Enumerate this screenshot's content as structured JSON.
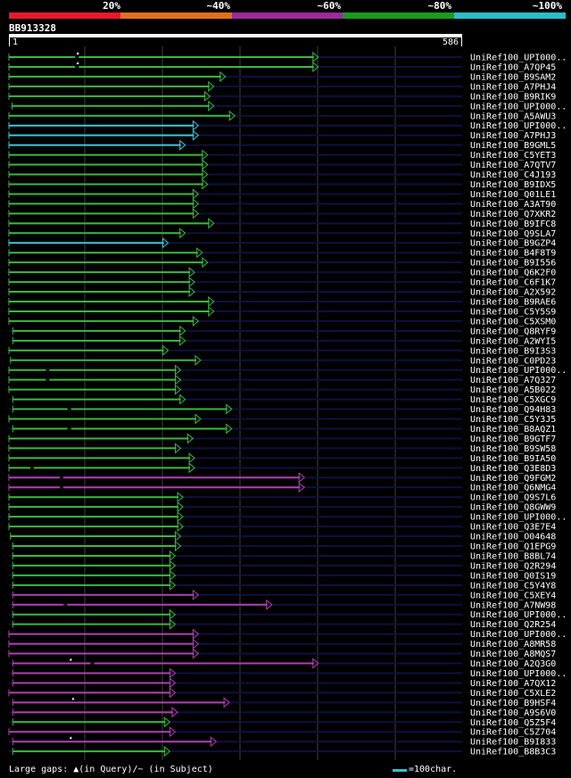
{
  "legend": {
    "labels": [
      "20%",
      "~40%",
      "~60%",
      "~80%",
      "~100%"
    ],
    "colors": [
      "#e8192c",
      "#e07020",
      "#9b2a9b",
      "#1d9a1d",
      "#2ebcc8"
    ]
  },
  "query": {
    "name": "BB913328",
    "start": "1",
    "end": "586",
    "length": 586
  },
  "colors": {
    "green": "#3cb83c",
    "cyan": "#3cc8d8",
    "magenta": "#b040b0",
    "guide": "#101040",
    "grid": "#404040"
  },
  "hits": [
    {
      "label": "UniRef100_UPI000..",
      "start": 1,
      "end": 400,
      "color": "green",
      "gap": 88,
      "marker": 89
    },
    {
      "label": "UniRef100_A7QP45",
      "start": 1,
      "end": 400,
      "color": "green",
      "gap": 88,
      "marker": 89
    },
    {
      "label": "UniRef100_B9SAM2",
      "start": 1,
      "end": 280,
      "color": "green"
    },
    {
      "label": "UniRef100_A7PHJ4",
      "start": 1,
      "end": 265,
      "color": "green"
    },
    {
      "label": "UniRef100_B9RIK9",
      "start": 1,
      "end": 260,
      "color": "green"
    },
    {
      "label": "UniRef100_UPI000..",
      "start": 5,
      "end": 265,
      "color": "green"
    },
    {
      "label": "UniRef100_A5AWU3",
      "start": 1,
      "end": 292,
      "color": "green"
    },
    {
      "label": "UniRef100_UPI000..",
      "start": 1,
      "end": 245,
      "color": "cyan"
    },
    {
      "label": "UniRef100_A7PHJ3",
      "start": 1,
      "end": 245,
      "color": "cyan"
    },
    {
      "label": "UniRef100_B9GML5",
      "start": 1,
      "end": 228,
      "color": "cyan"
    },
    {
      "label": "UniRef100_C5YET3",
      "start": 1,
      "end": 257,
      "color": "green"
    },
    {
      "label": "UniRef100_A7QTV7",
      "start": 1,
      "end": 257,
      "color": "green"
    },
    {
      "label": "UniRef100_C4J193",
      "start": 1,
      "end": 257,
      "color": "green"
    },
    {
      "label": "UniRef100_B9IDX5",
      "start": 1,
      "end": 257,
      "color": "green"
    },
    {
      "label": "UniRef100_Q01LE1",
      "start": 1,
      "end": 245,
      "color": "green"
    },
    {
      "label": "UniRef100_A3AT90",
      "start": 1,
      "end": 245,
      "color": "green"
    },
    {
      "label": "UniRef100_Q7XKR2",
      "start": 1,
      "end": 245,
      "color": "green"
    },
    {
      "label": "UniRef100_B9IFC8",
      "start": 1,
      "end": 265,
      "color": "green"
    },
    {
      "label": "UniRef100_Q9SLA7",
      "start": 1,
      "end": 228,
      "color": "green"
    },
    {
      "label": "UniRef100_B9GZP4",
      "start": 1,
      "end": 206,
      "color": "cyan"
    },
    {
      "label": "UniRef100_B4F8T9",
      "start": 1,
      "end": 250,
      "color": "green"
    },
    {
      "label": "UniRef100_B9I556",
      "start": 1,
      "end": 257,
      "color": "green"
    },
    {
      "label": "UniRef100_Q6K2F0",
      "start": 1,
      "end": 240,
      "color": "green"
    },
    {
      "label": "UniRef100_C6F1K7",
      "start": 1,
      "end": 240,
      "color": "green"
    },
    {
      "label": "UniRef100_A2X592",
      "start": 1,
      "end": 240,
      "color": "green"
    },
    {
      "label": "UniRef100_B9RAE6",
      "start": 1,
      "end": 265,
      "color": "green"
    },
    {
      "label": "UniRef100_C5Y5S9",
      "start": 1,
      "end": 265,
      "color": "green"
    },
    {
      "label": "UniRef100_C5XSM0",
      "start": 1,
      "end": 245,
      "color": "green"
    },
    {
      "label": "UniRef100_Q8RYF9",
      "start": 6,
      "end": 228,
      "color": "green"
    },
    {
      "label": "UniRef100_A2WYI5",
      "start": 6,
      "end": 228,
      "color": "green"
    },
    {
      "label": "UniRef100_B9I3S3",
      "start": 1,
      "end": 206,
      "color": "green"
    },
    {
      "label": "UniRef100_C0PD23",
      "start": 3,
      "end": 248,
      "color": "green"
    },
    {
      "label": "UniRef100_UPI000..",
      "start": 1,
      "end": 222,
      "color": "green",
      "gap": 50
    },
    {
      "label": "UniRef100_A7Q327",
      "start": 1,
      "end": 222,
      "color": "green",
      "gap": 50
    },
    {
      "label": "UniRef100_A5B022",
      "start": 1,
      "end": 222,
      "color": "green"
    },
    {
      "label": "UniRef100_C5XGC9",
      "start": 6,
      "end": 228,
      "color": "green"
    },
    {
      "label": "UniRef100_Q94H83",
      "start": 6,
      "end": 288,
      "color": "green",
      "gap": 78
    },
    {
      "label": "UniRef100_C5Y3J5",
      "start": 1,
      "end": 248,
      "color": "green"
    },
    {
      "label": "UniRef100_B8AQZ1",
      "start": 6,
      "end": 288,
      "color": "green",
      "gap": 78
    },
    {
      "label": "UniRef100_B9GTF7",
      "start": 1,
      "end": 238,
      "color": "green"
    },
    {
      "label": "UniRef100_B9SW58",
      "start": 1,
      "end": 222,
      "color": "green"
    },
    {
      "label": "UniRef100_B9IA50",
      "start": 1,
      "end": 240,
      "color": "green"
    },
    {
      "label": "UniRef100_Q3E8D3",
      "start": 1,
      "end": 240,
      "color": "green",
      "gap": 30
    },
    {
      "label": "UniRef100_Q9FGM2",
      "start": 1,
      "end": 382,
      "color": "magenta",
      "gap": 68
    },
    {
      "label": "UniRef100_Q6NMG4",
      "start": 1,
      "end": 382,
      "color": "magenta",
      "gap": 68
    },
    {
      "label": "UniRef100_Q9S7L6",
      "start": 1,
      "end": 225,
      "color": "green"
    },
    {
      "label": "UniRef100_Q8GWW9",
      "start": 1,
      "end": 225,
      "color": "green"
    },
    {
      "label": "UniRef100_UPI000..",
      "start": 1,
      "end": 225,
      "color": "green"
    },
    {
      "label": "UniRef100_Q3E7E4",
      "start": 1,
      "end": 225,
      "color": "green"
    },
    {
      "label": "UniRef100_O04648",
      "start": 3,
      "end": 222,
      "color": "green"
    },
    {
      "label": "UniRef100_Q1EPG9",
      "start": 6,
      "end": 222,
      "color": "green"
    },
    {
      "label": "UniRef100_B8BL74",
      "start": 6,
      "end": 215,
      "color": "green"
    },
    {
      "label": "UniRef100_Q2R294",
      "start": 6,
      "end": 215,
      "color": "green"
    },
    {
      "label": "UniRef100_Q0IS19",
      "start": 6,
      "end": 215,
      "color": "green"
    },
    {
      "label": "UniRef100_C5Y4Y8",
      "start": 6,
      "end": 215,
      "color": "green"
    },
    {
      "label": "UniRef100_C5XEY4",
      "start": 6,
      "end": 245,
      "color": "magenta"
    },
    {
      "label": "UniRef100_A7NW98",
      "start": 6,
      "end": 340,
      "color": "magenta",
      "gap": 73
    },
    {
      "label": "UniRef100_UPI000..",
      "start": 6,
      "end": 215,
      "color": "green"
    },
    {
      "label": "UniRef100_Q2R254",
      "start": 6,
      "end": 215,
      "color": "green"
    },
    {
      "label": "UniRef100_UPI000..",
      "start": 1,
      "end": 245,
      "color": "magenta"
    },
    {
      "label": "UniRef100_A8MR58",
      "start": 1,
      "end": 245,
      "color": "magenta"
    },
    {
      "label": "UniRef100_A8MQS7",
      "start": 1,
      "end": 245,
      "color": "magenta"
    },
    {
      "label": "UniRef100_A2Q3G0",
      "start": 6,
      "end": 400,
      "color": "magenta",
      "gap": 108,
      "marker": 80
    },
    {
      "label": "UniRef100_UPI000..",
      "start": 6,
      "end": 215,
      "color": "magenta"
    },
    {
      "label": "UniRef100_A7QX12",
      "start": 6,
      "end": 215,
      "color": "magenta"
    },
    {
      "label": "UniRef100_C5XLE2",
      "start": 1,
      "end": 215,
      "color": "magenta"
    },
    {
      "label": "UniRef100_B9HSF4",
      "start": 6,
      "end": 285,
      "color": "magenta",
      "marker": 83
    },
    {
      "label": "UniRef100_A9S6V0",
      "start": 6,
      "end": 218,
      "color": "magenta"
    },
    {
      "label": "UniRef100_Q5Z5F4",
      "start": 6,
      "end": 208,
      "color": "green"
    },
    {
      "label": "UniRef100_C5Z704",
      "start": 1,
      "end": 215,
      "color": "magenta"
    },
    {
      "label": "UniRef100_B9I833",
      "start": 6,
      "end": 268,
      "color": "magenta",
      "marker": 80
    },
    {
      "label": "UniRef100_B8B3C3",
      "start": 6,
      "end": 208,
      "color": "green"
    }
  ],
  "footer": {
    "gaps_text": "Large gaps: ▲(in Query)/~ (in Subject)",
    "scale_text": "=100char."
  }
}
